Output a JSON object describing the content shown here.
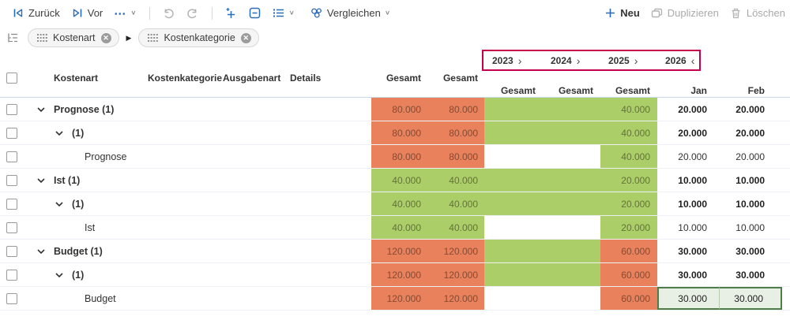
{
  "colors": {
    "accent_blue": "#2b6cb8",
    "cell_orange": "#e8815c",
    "cell_green": "#abce68",
    "selection_green_bg": "#e8efe4",
    "selection_green_border": "#4f7d49",
    "highlight_pink": "#c4004e"
  },
  "toolbar": {
    "back_label": "Zurück",
    "forward_label": "Vor",
    "more_glyph": "⋯",
    "compare_label": "Vergleichen",
    "new_label": "Neu",
    "duplicate_label": "Duplizieren",
    "delete_label": "Löschen"
  },
  "filters": {
    "chips": [
      {
        "label": "Kostenart"
      },
      {
        "label": "Kostenkategorie"
      }
    ],
    "arrow_glyph": "▶"
  },
  "years": [
    {
      "label": "2023",
      "chevron": "›"
    },
    {
      "label": "2024",
      "chevron": "›"
    },
    {
      "label": "2025",
      "chevron": "›"
    },
    {
      "label": "2026",
      "chevron": "‹"
    }
  ],
  "headers": {
    "kostenart": "Kostenart",
    "kostenkategorie": "Kostenkategorie",
    "ausgabenart": "Ausgabenart",
    "details": "Details",
    "gesamt1": "Gesamt",
    "gesamt2": "Gesamt",
    "y2023": "Gesamt",
    "y2024": "Gesamt",
    "y2025": "Gesamt",
    "jan": "Jan",
    "feb": "Feb"
  },
  "grid": {
    "rows": [
      {
        "label": "Prognose (1)",
        "level": 1,
        "group": true,
        "cells": [
          {
            "v": "80.000",
            "bg": "orange"
          },
          {
            "v": "80.000",
            "bg": "orange"
          },
          {
            "v": "",
            "bg": "green"
          },
          {
            "v": "",
            "bg": "green"
          },
          {
            "v": "40.000",
            "bg": "green"
          },
          {
            "v": "20.000",
            "bold": true
          },
          {
            "v": "20.000",
            "bold": true
          }
        ]
      },
      {
        "label": "(1)",
        "level": 2,
        "group": true,
        "cells": [
          {
            "v": "80.000",
            "bg": "orange"
          },
          {
            "v": "80.000",
            "bg": "orange"
          },
          {
            "v": "",
            "bg": "green"
          },
          {
            "v": "",
            "bg": "green"
          },
          {
            "v": "40.000",
            "bg": "green"
          },
          {
            "v": "20.000",
            "bold": true
          },
          {
            "v": "20.000",
            "bold": true
          }
        ]
      },
      {
        "label": "Prognose",
        "level": 3,
        "group": false,
        "cells": [
          {
            "v": "80.000",
            "bg": "orange"
          },
          {
            "v": "80.000",
            "bg": "orange"
          },
          {
            "v": ""
          },
          {
            "v": ""
          },
          {
            "v": "40.000",
            "bg": "green"
          },
          {
            "v": "20.000"
          },
          {
            "v": "20.000"
          }
        ]
      },
      {
        "label": "Ist (1)",
        "level": 1,
        "group": true,
        "cells": [
          {
            "v": "40.000",
            "bg": "green"
          },
          {
            "v": "40.000",
            "bg": "green"
          },
          {
            "v": "",
            "bg": "green"
          },
          {
            "v": "",
            "bg": "green"
          },
          {
            "v": "20.000",
            "bg": "green"
          },
          {
            "v": "10.000",
            "bold": true
          },
          {
            "v": "10.000",
            "bold": true
          }
        ]
      },
      {
        "label": "(1)",
        "level": 2,
        "group": true,
        "cells": [
          {
            "v": "40.000",
            "bg": "green"
          },
          {
            "v": "40.000",
            "bg": "green"
          },
          {
            "v": "",
            "bg": "green"
          },
          {
            "v": "",
            "bg": "green"
          },
          {
            "v": "20.000",
            "bg": "green"
          },
          {
            "v": "10.000",
            "bold": true
          },
          {
            "v": "10.000",
            "bold": true
          }
        ]
      },
      {
        "label": "Ist",
        "level": 3,
        "group": false,
        "cells": [
          {
            "v": "40.000",
            "bg": "green"
          },
          {
            "v": "40.000",
            "bg": "green"
          },
          {
            "v": ""
          },
          {
            "v": ""
          },
          {
            "v": "20.000",
            "bg": "green"
          },
          {
            "v": "10.000"
          },
          {
            "v": "10.000"
          }
        ]
      },
      {
        "label": "Budget (1)",
        "level": 1,
        "group": true,
        "cells": [
          {
            "v": "120.000",
            "bg": "orange"
          },
          {
            "v": "120.000",
            "bg": "orange"
          },
          {
            "v": "",
            "bg": "green"
          },
          {
            "v": "",
            "bg": "green"
          },
          {
            "v": "60.000",
            "bg": "orange"
          },
          {
            "v": "30.000",
            "bold": true
          },
          {
            "v": "30.000",
            "bold": true
          }
        ]
      },
      {
        "label": "(1)",
        "level": 2,
        "group": true,
        "cells": [
          {
            "v": "120.000",
            "bg": "orange"
          },
          {
            "v": "120.000",
            "bg": "orange"
          },
          {
            "v": "",
            "bg": "green"
          },
          {
            "v": "",
            "bg": "green"
          },
          {
            "v": "60.000",
            "bg": "orange"
          },
          {
            "v": "30.000",
            "bold": true
          },
          {
            "v": "30.000",
            "bold": true
          }
        ]
      },
      {
        "label": "Budget",
        "level": 3,
        "group": false,
        "cells": [
          {
            "v": "120.000",
            "bg": "orange"
          },
          {
            "v": "120.000",
            "bg": "orange"
          },
          {
            "v": ""
          },
          {
            "v": ""
          },
          {
            "v": "60.000",
            "bg": "orange"
          },
          {
            "v": "30.000",
            "sel": "first"
          },
          {
            "v": "30.000",
            "sel": "last"
          }
        ]
      }
    ]
  }
}
